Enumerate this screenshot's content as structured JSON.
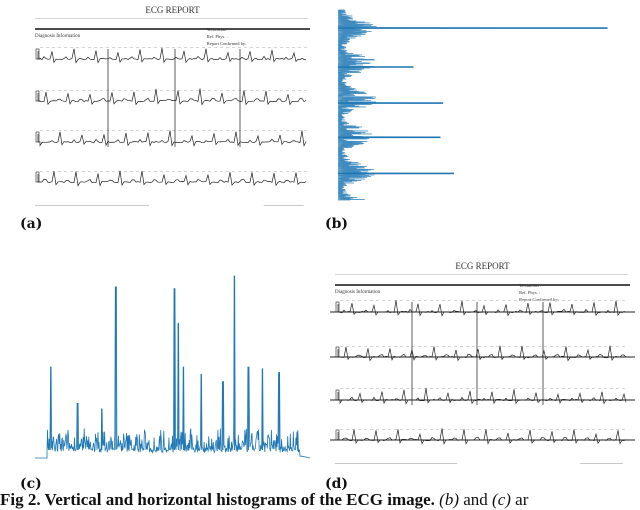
{
  "figure": {
    "caption_bold": "Fig 2. Vertical and horizontal histograms of the ECG image.",
    "caption_rest_b": "(b)",
    "caption_rest_and": " and ",
    "caption_rest_c": "(c)",
    "caption_rest_tail": " ar",
    "panels": [
      {
        "label": "(a)"
      },
      {
        "label": "(b)"
      },
      {
        "label": "(c)"
      },
      {
        "label": "(d)"
      }
    ]
  },
  "ecg_report": {
    "title": "ECG REPORT",
    "diagnosis": "Diagnosis Information",
    "technician": "Technician :",
    "ref_phys": "Ref. Phys. :",
    "confirmed": "Report Confirmed by:"
  },
  "chart_data": [
    {
      "type": "bar",
      "orientation": "horizontal",
      "color": "#1f77b4",
      "index_range": [
        0,
        1000
      ],
      "peaks": [
        {
          "index": 95,
          "value": 1.0
        },
        {
          "index": 300,
          "value": 0.28
        },
        {
          "index": 490,
          "value": 0.39
        },
        {
          "index": 670,
          "value": 0.38
        },
        {
          "index": 860,
          "value": 0.43
        }
      ]
    },
    {
      "type": "line",
      "color": "#1f77b4",
      "index_range": [
        0,
        1000
      ],
      "peaks": [
        {
          "index": 15,
          "value": 0.5
        },
        {
          "index": 270,
          "value": 0.94
        },
        {
          "index": 500,
          "value": 0.93
        },
        {
          "index": 515,
          "value": 0.74
        },
        {
          "index": 535,
          "value": 0.5
        },
        {
          "index": 605,
          "value": 0.46
        },
        {
          "index": 690,
          "value": 0.42
        },
        {
          "index": 735,
          "value": 1.0
        },
        {
          "index": 790,
          "value": 0.5
        },
        {
          "index": 845,
          "value": 0.49
        },
        {
          "index": 910,
          "value": 0.47
        },
        {
          "index": 120,
          "value": 0.3
        },
        {
          "index": 215,
          "value": 0.27
        }
      ]
    }
  ]
}
